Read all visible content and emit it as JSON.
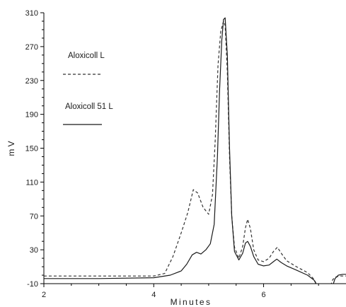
{
  "chart_data": {
    "type": "line",
    "title": "",
    "xlabel": "Minutes",
    "ylabel": "m V",
    "xlim": [
      2,
      7.5
    ],
    "ylim": [
      -10,
      310
    ],
    "x_ticks": [
      2,
      4,
      6
    ],
    "x_tick_labels": [
      "2",
      "4",
      "6"
    ],
    "y_ticks": [
      -10,
      30,
      70,
      110,
      150,
      190,
      230,
      270,
      310
    ],
    "y_tick_labels": [
      "-10",
      "30",
      "70",
      "110",
      "150",
      "190",
      "230",
      "270",
      "310"
    ],
    "grid": false,
    "legend_position": "top-left",
    "series": [
      {
        "name": "Aloxicoll L",
        "style": "dashed",
        "color": "#333333",
        "x": [
          2.0,
          3.0,
          4.0,
          4.2,
          4.35,
          4.5,
          4.62,
          4.72,
          4.8,
          4.9,
          5.0,
          5.07,
          5.12,
          5.17,
          5.22,
          5.27,
          5.3,
          5.34,
          5.38,
          5.42,
          5.47,
          5.55,
          5.62,
          5.67,
          5.71,
          5.76,
          5.82,
          5.9,
          6.0,
          6.1,
          6.18,
          6.25,
          6.32,
          6.42,
          6.6,
          6.8,
          6.92,
          6.97
        ],
        "y": [
          -1,
          -1,
          -1,
          2,
          22,
          50,
          74,
          101,
          97,
          80,
          72,
          95,
          160,
          248,
          288,
          300,
          295,
          240,
          140,
          70,
          33,
          20,
          34,
          56,
          66,
          55,
          30,
          18,
          16,
          20,
          28,
          33,
          26,
          17,
          10,
          3,
          -5,
          -12
        ]
      },
      {
        "name": "Aloxicoll 51 L",
        "style": "solid",
        "color": "#1a1a1a",
        "x": [
          2.0,
          3.0,
          4.0,
          4.3,
          4.5,
          4.6,
          4.7,
          4.78,
          4.86,
          4.95,
          5.03,
          5.1,
          5.16,
          5.2,
          5.24,
          5.27,
          5.3,
          5.34,
          5.38,
          5.42,
          5.47,
          5.55,
          5.62,
          5.67,
          5.71,
          5.76,
          5.82,
          5.9,
          6.0,
          6.1,
          6.18,
          6.24,
          6.32,
          6.42,
          6.6,
          6.8,
          6.92,
          6.97
        ],
        "y": [
          -4,
          -4,
          -3,
          0,
          5,
          13,
          24,
          27,
          25,
          30,
          37,
          60,
          140,
          220,
          278,
          302,
          304,
          260,
          150,
          70,
          28,
          18,
          26,
          38,
          40,
          34,
          22,
          13,
          11,
          12,
          16,
          19,
          15,
          11,
          6,
          0,
          -6,
          -12
        ]
      },
      {
        "name": "",
        "style": "dashed",
        "color": "#333333",
        "x": [
          7.22,
          7.26,
          7.32,
          7.4,
          7.5
        ],
        "y": [
          -12,
          -5,
          -2,
          -1,
          -1
        ]
      },
      {
        "name": "",
        "style": "solid",
        "color": "#1a1a1a",
        "x": [
          7.26,
          7.3,
          7.36,
          7.44,
          7.5
        ],
        "y": [
          -12,
          -4,
          0,
          1,
          1
        ]
      }
    ]
  }
}
